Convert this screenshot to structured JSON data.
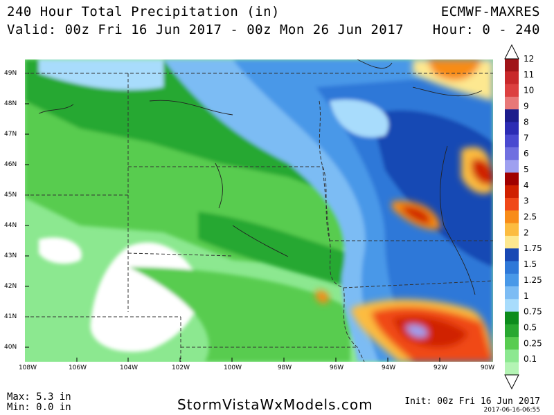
{
  "header": {
    "title": "240 Hour Total Precipitation (in)",
    "valid": "Valid: 00z Fri 16 Jun 2017 - 00z Mon 26 Jun 2017",
    "model": "ECMWF-MAXRES",
    "hours": "Hour: 0 - 240"
  },
  "axes": {
    "lat_labels": [
      "49N",
      "48N",
      "47N",
      "46N",
      "45N",
      "44N",
      "43N",
      "42N",
      "41N",
      "40N"
    ],
    "lon_labels": [
      "108W",
      "106W",
      "104W",
      "102W",
      "100W",
      "98W",
      "96W",
      "94W",
      "92W",
      "90W"
    ]
  },
  "legend": {
    "levels": [
      "12",
      "11",
      "10",
      "9",
      "8",
      "7",
      "6",
      "5",
      "4",
      "3",
      "2.5",
      "2",
      "1.75",
      "1.5",
      "1.25",
      "1",
      "0.75",
      "0.5",
      "0.25",
      "0.1"
    ],
    "colors": [
      "#a01418",
      "#c8282a",
      "#dc4040",
      "#e87878",
      "#1c1c8c",
      "#2c2cb4",
      "#4a4ad0",
      "#7070e0",
      "#9ea0f0",
      "#a00000",
      "#d02000",
      "#f04818",
      "#f88c18",
      "#fcbc40",
      "#fde890",
      "#1848b4",
      "#2e78d8",
      "#4898e8",
      "#7cbcf4",
      "#a8dcfc",
      "#0c8c1c",
      "#28a830",
      "#58cc50",
      "#8ce890",
      "#b4f4b4"
    ]
  },
  "footer": {
    "max": "Max: 5.3 in",
    "min": "Min: 0.0 in",
    "site": "StormVistaWxModels.com",
    "init": "Init: 00z Fri 16 Jun 2017",
    "stamp": "2017-06-16-06:55"
  }
}
